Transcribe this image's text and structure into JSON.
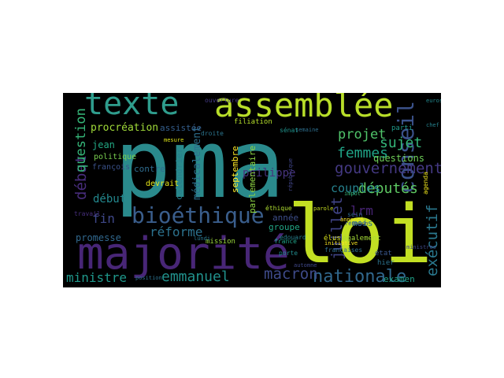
{
  "word_cloud": {
    "background_color": "#000000",
    "words": [
      {
        "text": "pma",
        "color": "#2a8a8c"
      },
      {
        "text": "loi",
        "color": "#c2df23"
      },
      {
        "text": "majorité",
        "color": "#482677"
      },
      {
        "text": "texte",
        "color": "#2f9d8d"
      },
      {
        "text": "assemblée",
        "color": "#b8de29"
      },
      {
        "text": "bioéthique",
        "color": "#3a5e8c"
      },
      {
        "text": "conseil",
        "color": "#3b528b"
      },
      {
        "text": "nationale",
        "color": "#31688e"
      },
      {
        "text": "gouvernement",
        "color": "#443983"
      },
      {
        "text": "députés",
        "color": "#5ec962"
      },
      {
        "text": "exécutif",
        "color": "#2a788e"
      },
      {
        "text": "emmanuel",
        "color": "#21918c"
      },
      {
        "text": "macron",
        "color": "#3e4a89"
      },
      {
        "text": "sujet",
        "color": "#34b679"
      },
      {
        "text": "femmes",
        "color": "#20a386"
      },
      {
        "text": "projet",
        "color": "#50c46a"
      },
      {
        "text": "débat",
        "color": "#472c7a"
      },
      {
        "text": "juillet",
        "color": "#414487"
      },
      {
        "text": "question",
        "color": "#35b779"
      },
      {
        "text": "couples",
        "color": "#26828e"
      },
      {
        "text": "réforme",
        "color": "#2c728e"
      },
      {
        "text": "ministre",
        "color": "#1f988b"
      },
      {
        "text": "philippe",
        "color": "#46337e"
      },
      {
        "text": "début",
        "color": "#23888e"
      },
      {
        "text": "fin",
        "color": "#3f4889"
      },
      {
        "text": "lrm",
        "color": "#482475"
      },
      {
        "text": "médicalement",
        "color": "#2d708e"
      },
      {
        "text": "procréation",
        "color": "#a0da39"
      },
      {
        "text": "assistée",
        "color": "#355f8d"
      },
      {
        "text": "calendrier",
        "color": "#277f8e"
      },
      {
        "text": "septembre",
        "color": "#fde725"
      },
      {
        "text": "parlementaire",
        "color": "#90d743"
      },
      {
        "text": "jean",
        "color": "#22a884"
      },
      {
        "text": "questions",
        "color": "#6ece58"
      },
      {
        "text": "promesse",
        "color": "#31688e"
      },
      {
        "text": "contre",
        "color": "#2f6c8e"
      },
      {
        "text": "examen",
        "color": "#1fa188"
      },
      {
        "text": "année",
        "color": "#3d4e8a"
      },
      {
        "text": "groupe",
        "color": "#22a785"
      },
      {
        "text": "mois",
        "color": "#2e6f8e"
      },
      {
        "text": "politique",
        "color": "#7ad151"
      },
      {
        "text": "françois",
        "color": "#3b528b"
      },
      {
        "text": "élus",
        "color": "#d8e219"
      },
      {
        "text": "également",
        "color": "#a5db36"
      },
      {
        "text": "agenda",
        "color": "#efe51c"
      },
      {
        "text": "parti",
        "color": "#1f9a8a"
      },
      {
        "text": "hier",
        "color": "#2c738e"
      },
      {
        "text": "état",
        "color": "#39568c"
      },
      {
        "text": "mission",
        "color": "#9bd93c"
      },
      {
        "text": "filiation",
        "color": "#b5de2b"
      },
      {
        "text": "devrait",
        "color": "#e5e419"
      },
      {
        "text": "ouverture",
        "color": "#443a83"
      },
      {
        "text": "françaises",
        "color": "#2e6e8e"
      },
      {
        "text": "national",
        "color": "#482979"
      },
      {
        "text": "edouard",
        "color": "#27808e"
      },
      {
        "text": "porte",
        "color": "#228b8d"
      },
      {
        "text": "sein",
        "color": "#31688e"
      },
      {
        "text": "france",
        "color": "#1fa287"
      },
      {
        "text": "droite",
        "color": "#2b758e"
      },
      {
        "text": "ministres",
        "color": "#3e4989"
      },
      {
        "text": "travail",
        "color": "#472f7d"
      },
      {
        "text": "république",
        "color": "#404588"
      },
      {
        "text": "éthique",
        "color": "#addc30"
      },
      {
        "text": "impôt",
        "color": "#35b779"
      },
      {
        "text": "semaine",
        "color": "#2e6f8e"
      },
      {
        "text": "sénat",
        "color": "#20938c"
      },
      {
        "text": "mesure",
        "color": "#dde318"
      },
      {
        "text": "réunion",
        "color": "#3c4f8a"
      },
      {
        "text": "parole",
        "color": "#c8e020"
      },
      {
        "text": "automne",
        "color": "#3f4788"
      },
      {
        "text": "initiative",
        "color": "#f8e621"
      },
      {
        "text": "annoncé",
        "color": "#fde725"
      },
      {
        "text": "lundi",
        "color": "#2a778e"
      },
      {
        "text": "euros",
        "color": "#23898e"
      },
      {
        "text": "position",
        "color": "#2c718e"
      },
      {
        "text": "chef",
        "color": "#26828e"
      },
      {
        "text": "trem",
        "color": "#297a8e"
      }
    ]
  }
}
